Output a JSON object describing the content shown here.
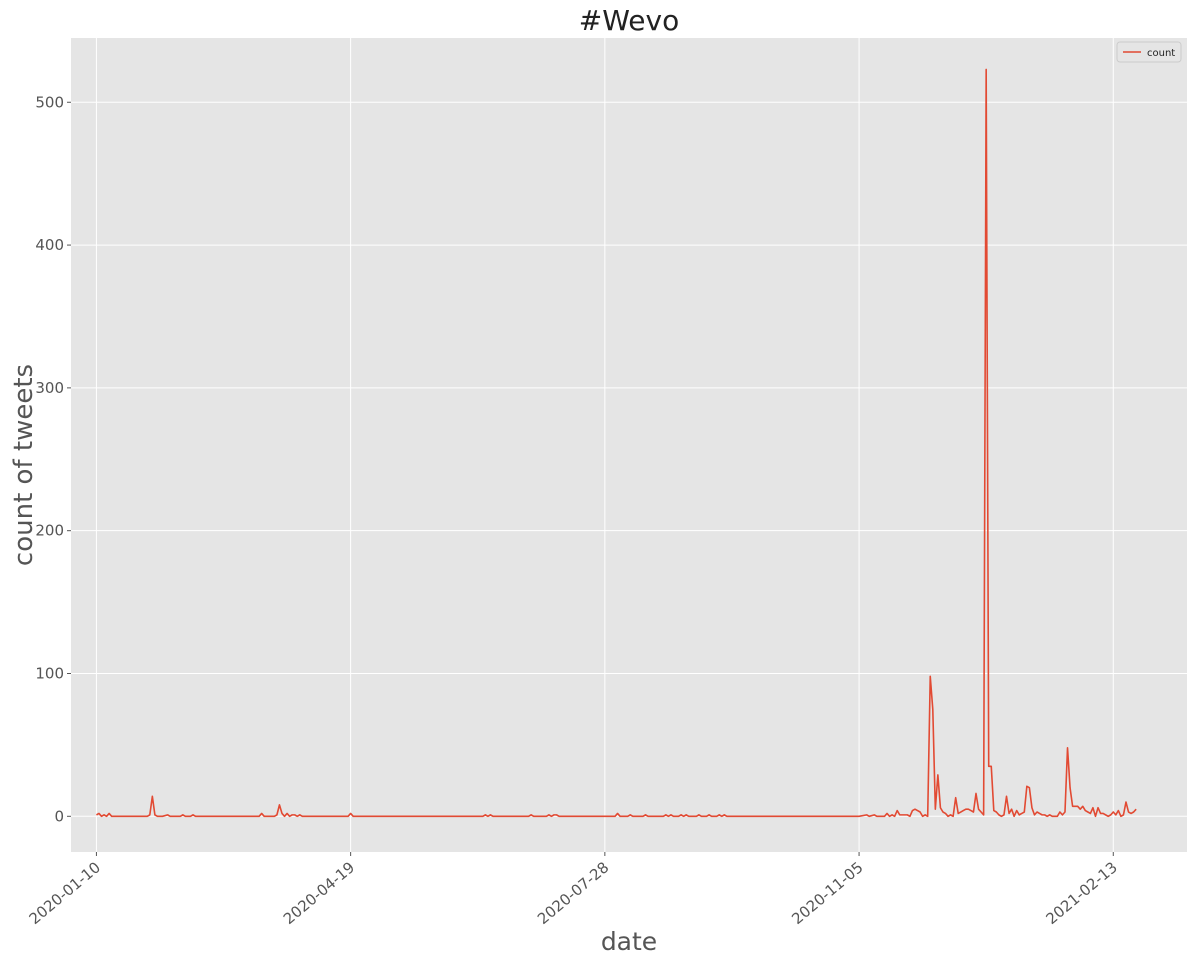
{
  "chart_data": {
    "type": "line",
    "title": "#Wevo",
    "xlabel": "date",
    "ylabel": "count of tweets",
    "x_ticks": [
      "2020-01-10",
      "2020-04-19",
      "2020-07-28",
      "2020-11-05",
      "2021-02-13"
    ],
    "y_ticks": [
      "0",
      "100",
      "200",
      "300",
      "400",
      "500"
    ],
    "ylim": [
      -25,
      545
    ],
    "xlim": [
      "2019-12-31",
      "2021-03-14"
    ],
    "grid": true,
    "legend": {
      "position": "top-right",
      "entries": [
        "count"
      ]
    },
    "series": [
      {
        "name": "count",
        "color": "#e24a33",
        "points": [
          [
            "2020-01-10",
            1
          ],
          [
            "2020-01-11",
            2
          ],
          [
            "2020-01-12",
            0
          ],
          [
            "2020-01-13",
            1
          ],
          [
            "2020-01-14",
            0
          ],
          [
            "2020-01-15",
            2
          ],
          [
            "2020-01-16",
            0
          ],
          [
            "2020-01-20",
            0
          ],
          [
            "2020-01-25",
            0
          ],
          [
            "2020-01-30",
            0
          ],
          [
            "2020-01-31",
            1
          ],
          [
            "2020-02-01",
            14
          ],
          [
            "2020-02-02",
            1
          ],
          [
            "2020-02-03",
            0
          ],
          [
            "2020-02-05",
            0
          ],
          [
            "2020-02-07",
            1
          ],
          [
            "2020-02-08",
            0
          ],
          [
            "2020-02-12",
            0
          ],
          [
            "2020-02-13",
            1
          ],
          [
            "2020-02-14",
            0
          ],
          [
            "2020-02-16",
            0
          ],
          [
            "2020-02-17",
            1
          ],
          [
            "2020-02-18",
            0
          ],
          [
            "2020-03-01",
            0
          ],
          [
            "2020-03-14",
            0
          ],
          [
            "2020-03-15",
            2
          ],
          [
            "2020-03-16",
            0
          ],
          [
            "2020-03-20",
            0
          ],
          [
            "2020-03-21",
            1
          ],
          [
            "2020-03-22",
            8
          ],
          [
            "2020-03-23",
            2
          ],
          [
            "2020-03-24",
            0
          ],
          [
            "2020-03-25",
            2
          ],
          [
            "2020-03-26",
            0
          ],
          [
            "2020-03-27",
            1
          ],
          [
            "2020-03-28",
            1
          ],
          [
            "2020-03-29",
            0
          ],
          [
            "2020-03-30",
            1
          ],
          [
            "2020-03-31",
            0
          ],
          [
            "2020-04-10",
            0
          ],
          [
            "2020-04-18",
            0
          ],
          [
            "2020-04-19",
            2
          ],
          [
            "2020-04-20",
            0
          ],
          [
            "2020-05-15",
            0
          ],
          [
            "2020-06-10",
            0
          ],
          [
            "2020-06-11",
            1
          ],
          [
            "2020-06-12",
            0
          ],
          [
            "2020-06-13",
            1
          ],
          [
            "2020-06-14",
            0
          ],
          [
            "2020-06-28",
            0
          ],
          [
            "2020-06-29",
            1
          ],
          [
            "2020-06-30",
            0
          ],
          [
            "2020-07-05",
            0
          ],
          [
            "2020-07-06",
            1
          ],
          [
            "2020-07-07",
            0
          ],
          [
            "2020-07-08",
            1
          ],
          [
            "2020-07-09",
            1
          ],
          [
            "2020-07-10",
            0
          ],
          [
            "2020-07-25",
            0
          ],
          [
            "2020-08-01",
            0
          ],
          [
            "2020-08-02",
            2
          ],
          [
            "2020-08-03",
            0
          ],
          [
            "2020-08-06",
            0
          ],
          [
            "2020-08-07",
            1
          ],
          [
            "2020-08-08",
            0
          ],
          [
            "2020-08-12",
            0
          ],
          [
            "2020-08-13",
            1
          ],
          [
            "2020-08-14",
            0
          ],
          [
            "2020-08-20",
            0
          ],
          [
            "2020-08-21",
            1
          ],
          [
            "2020-08-22",
            0
          ],
          [
            "2020-08-23",
            1
          ],
          [
            "2020-08-24",
            0
          ],
          [
            "2020-08-26",
            0
          ],
          [
            "2020-08-27",
            1
          ],
          [
            "2020-08-28",
            0
          ],
          [
            "2020-08-29",
            1
          ],
          [
            "2020-08-30",
            0
          ],
          [
            "2020-09-02",
            0
          ],
          [
            "2020-09-03",
            1
          ],
          [
            "2020-09-04",
            0
          ],
          [
            "2020-09-06",
            0
          ],
          [
            "2020-09-07",
            1
          ],
          [
            "2020-09-08",
            0
          ],
          [
            "2020-09-10",
            0
          ],
          [
            "2020-09-11",
            1
          ],
          [
            "2020-09-12",
            0
          ],
          [
            "2020-09-13",
            1
          ],
          [
            "2020-09-14",
            0
          ],
          [
            "2020-10-01",
            0
          ],
          [
            "2020-10-20",
            0
          ],
          [
            "2020-11-05",
            0
          ],
          [
            "2020-11-08",
            1
          ],
          [
            "2020-11-09",
            0
          ],
          [
            "2020-11-11",
            1
          ],
          [
            "2020-11-12",
            0
          ],
          [
            "2020-11-15",
            0
          ],
          [
            "2020-11-16",
            2
          ],
          [
            "2020-11-17",
            0
          ],
          [
            "2020-11-18",
            1
          ],
          [
            "2020-11-19",
            0
          ],
          [
            "2020-11-20",
            4
          ],
          [
            "2020-11-21",
            1
          ],
          [
            "2020-11-22",
            1
          ],
          [
            "2020-11-23",
            1
          ],
          [
            "2020-11-24",
            1
          ],
          [
            "2020-11-25",
            0
          ],
          [
            "2020-11-26",
            4
          ],
          [
            "2020-11-27",
            5
          ],
          [
            "2020-11-28",
            4
          ],
          [
            "2020-11-29",
            3
          ],
          [
            "2020-11-30",
            0
          ],
          [
            "2020-12-01",
            1
          ],
          [
            "2020-12-02",
            0
          ],
          [
            "2020-12-03",
            98
          ],
          [
            "2020-12-04",
            75
          ],
          [
            "2020-12-05",
            5
          ],
          [
            "2020-12-06",
            29
          ],
          [
            "2020-12-07",
            6
          ],
          [
            "2020-12-08",
            3
          ],
          [
            "2020-12-09",
            2
          ],
          [
            "2020-12-10",
            0
          ],
          [
            "2020-12-11",
            1
          ],
          [
            "2020-12-12",
            0
          ],
          [
            "2020-12-13",
            13
          ],
          [
            "2020-12-14",
            2
          ],
          [
            "2020-12-15",
            3
          ],
          [
            "2020-12-16",
            4
          ],
          [
            "2020-12-17",
            5
          ],
          [
            "2020-12-18",
            5
          ],
          [
            "2020-12-19",
            4
          ],
          [
            "2020-12-20",
            3
          ],
          [
            "2020-12-21",
            16
          ],
          [
            "2020-12-22",
            5
          ],
          [
            "2020-12-23",
            3
          ],
          [
            "2020-12-24",
            1
          ],
          [
            "2020-12-25",
            523
          ],
          [
            "2020-12-26",
            35
          ],
          [
            "2020-12-27",
            35
          ],
          [
            "2020-12-28",
            4
          ],
          [
            "2020-12-29",
            3
          ],
          [
            "2020-12-30",
            1
          ],
          [
            "2020-12-31",
            0
          ],
          [
            "2021-01-01",
            1
          ],
          [
            "2021-01-02",
            14
          ],
          [
            "2021-01-03",
            2
          ],
          [
            "2021-01-04",
            5
          ],
          [
            "2021-01-05",
            0
          ],
          [
            "2021-01-06",
            4
          ],
          [
            "2021-01-07",
            1
          ],
          [
            "2021-01-08",
            2
          ],
          [
            "2021-01-09",
            3
          ],
          [
            "2021-01-10",
            21
          ],
          [
            "2021-01-11",
            20
          ],
          [
            "2021-01-12",
            6
          ],
          [
            "2021-01-13",
            1
          ],
          [
            "2021-01-14",
            3
          ],
          [
            "2021-01-15",
            2
          ],
          [
            "2021-01-16",
            1
          ],
          [
            "2021-01-17",
            1
          ],
          [
            "2021-01-18",
            0
          ],
          [
            "2021-01-19",
            1
          ],
          [
            "2021-01-20",
            0
          ],
          [
            "2021-01-22",
            0
          ],
          [
            "2021-01-23",
            3
          ],
          [
            "2021-01-24",
            1
          ],
          [
            "2021-01-25",
            3
          ],
          [
            "2021-01-26",
            48
          ],
          [
            "2021-01-27",
            20
          ],
          [
            "2021-01-28",
            7
          ],
          [
            "2021-01-29",
            7
          ],
          [
            "2021-01-30",
            7
          ],
          [
            "2021-01-31",
            5
          ],
          [
            "2021-02-01",
            7
          ],
          [
            "2021-02-02",
            4
          ],
          [
            "2021-02-03",
            3
          ],
          [
            "2021-02-04",
            2
          ],
          [
            "2021-02-05",
            6
          ],
          [
            "2021-02-06",
            0
          ],
          [
            "2021-02-07",
            6
          ],
          [
            "2021-02-08",
            2
          ],
          [
            "2021-02-09",
            2
          ],
          [
            "2021-02-10",
            1
          ],
          [
            "2021-02-11",
            0
          ],
          [
            "2021-02-12",
            1
          ],
          [
            "2021-02-13",
            3
          ],
          [
            "2021-02-14",
            1
          ],
          [
            "2021-02-15",
            4
          ],
          [
            "2021-02-16",
            0
          ],
          [
            "2021-02-17",
            1
          ],
          [
            "2021-02-18",
            10
          ],
          [
            "2021-02-19",
            3
          ],
          [
            "2021-02-20",
            2
          ],
          [
            "2021-02-21",
            3
          ],
          [
            "2021-02-22",
            5
          ]
        ]
      }
    ]
  }
}
